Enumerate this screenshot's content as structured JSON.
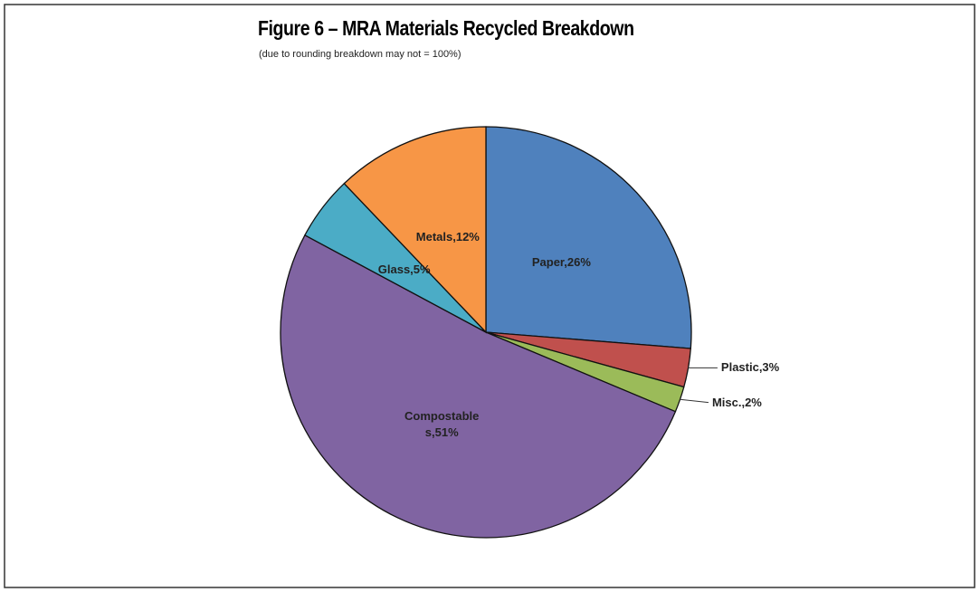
{
  "chart_data": {
    "type": "pie",
    "title": "Figure 6 – MRA Materials Recycled Breakdown",
    "subtitle": "(due to rounding breakdown may not = 100%)",
    "values": [
      26,
      3,
      2,
      51,
      5,
      12
    ],
    "value_labels": [
      "Paper,26%",
      "Plastic,3%",
      "Misc.,2%",
      "Compostables,51%",
      "Glass,5%",
      "Metals,12%"
    ],
    "colors": [
      "#4f81bd",
      "#c0504d",
      "#9bbb59",
      "#8064a2",
      "#4bacc6",
      "#f79646"
    ]
  }
}
